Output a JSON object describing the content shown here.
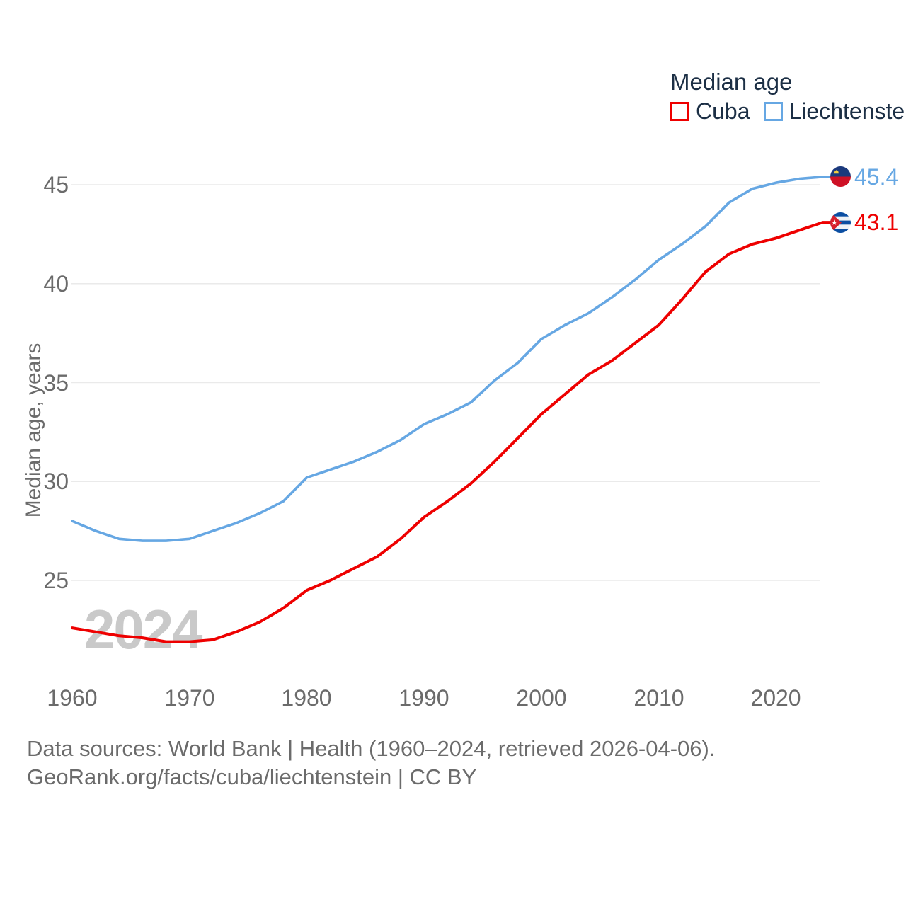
{
  "chart_data": {
    "type": "line",
    "title": "Median age",
    "ylabel": "Median age, years",
    "x_range": [
      1960,
      2024
    ],
    "y_range": [
      21,
      47
    ],
    "x_ticks": [
      1960,
      1970,
      1980,
      1990,
      2000,
      2010,
      2020
    ],
    "y_ticks": [
      25,
      30,
      35,
      40,
      45
    ],
    "grid": "horizontal",
    "legend_position": "top-right",
    "watermark": "2024",
    "x": [
      1960,
      1962,
      1964,
      1966,
      1968,
      1970,
      1972,
      1974,
      1976,
      1978,
      1980,
      1982,
      1984,
      1986,
      1988,
      1990,
      1992,
      1994,
      1996,
      1998,
      2000,
      2002,
      2004,
      2006,
      2008,
      2010,
      2012,
      2014,
      2016,
      2018,
      2020,
      2022,
      2024
    ],
    "series": [
      {
        "name": "Cuba",
        "color": "#ee0000",
        "flag": "cuba-flag",
        "end_label": "43.1",
        "values": [
          22.6,
          22.4,
          22.2,
          22.1,
          21.9,
          21.9,
          22.0,
          22.4,
          22.9,
          23.6,
          24.5,
          25.0,
          25.6,
          26.2,
          27.1,
          28.2,
          29.0,
          29.9,
          31.0,
          32.2,
          33.4,
          34.4,
          35.4,
          36.1,
          37.0,
          37.9,
          39.2,
          40.6,
          41.5,
          42.0,
          42.3,
          42.7,
          43.1
        ]
      },
      {
        "name": "Liechtenstein",
        "color": "#66a7e3",
        "flag": "liechtenstein-flag",
        "end_label": "45.4",
        "values": [
          28.0,
          27.5,
          27.1,
          27.0,
          27.0,
          27.1,
          27.5,
          27.9,
          28.4,
          29.0,
          30.2,
          30.6,
          31.0,
          31.5,
          32.1,
          32.9,
          33.4,
          34.0,
          35.1,
          36.0,
          37.2,
          37.9,
          38.5,
          39.3,
          40.2,
          41.2,
          42.0,
          42.9,
          44.1,
          44.8,
          45.1,
          45.3,
          45.4
        ]
      }
    ],
    "colors": {
      "grid": "#eaeaea",
      "axis_text": "#6b6b6b",
      "legend_text": "#1c2f45",
      "watermark": "#c9c9c9"
    }
  },
  "footer": {
    "line1": "Data sources: World Bank | Health (1960–2024, retrieved 2026-04-06).",
    "line2": "GeoRank.org/facts/cuba/liechtenstein | CC BY"
  }
}
